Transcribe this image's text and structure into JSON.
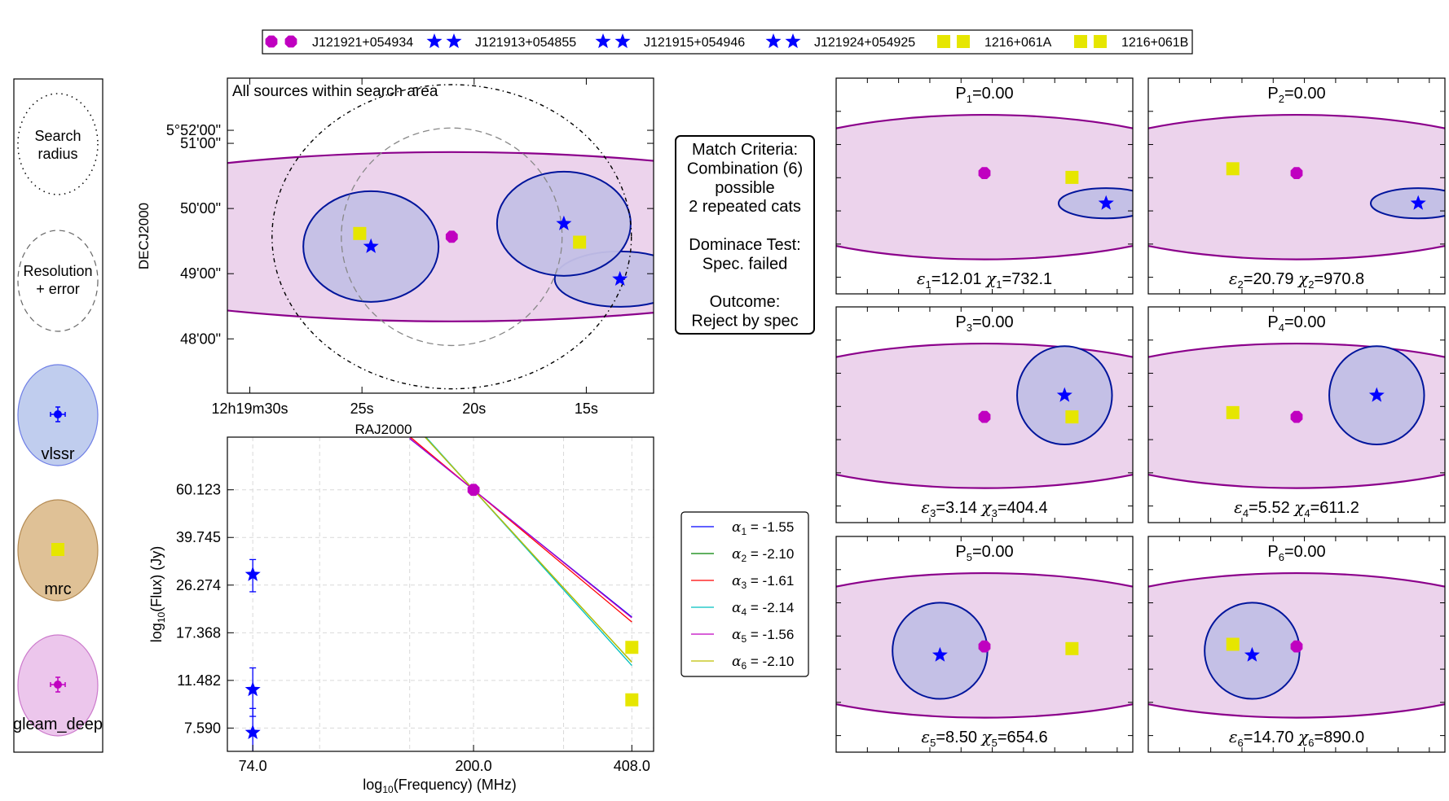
{
  "legend_top": [
    {
      "label": "J121921+054934",
      "marker": "hexagon",
      "color": "#c000c0"
    },
    {
      "label": "J121913+054855",
      "marker": "star",
      "color": "#0000ff"
    },
    {
      "label": "J121915+054946",
      "marker": "star",
      "color": "#0000ff"
    },
    {
      "label": "J121924+054925",
      "marker": "star",
      "color": "#0000ff"
    },
    {
      "label": "1216+061A",
      "marker": "square",
      "color": "#e6e600"
    },
    {
      "label": "1216+061B",
      "marker": "square",
      "color": "#e6e600"
    }
  ],
  "key_panel": {
    "search_radius": "Search\nradius",
    "resolution_error": "Resolution\n+ error",
    "catalogues": [
      {
        "name": "vlssr",
        "fill": "#c0cdee",
        "edge": "#6f7fe6",
        "marker": "cross",
        "marker_color": "#0000ff"
      },
      {
        "name": "mrc",
        "fill": "#dfc196",
        "edge": "#b48a52",
        "marker": "square",
        "marker_color": "#e6e600"
      },
      {
        "name": "gleam_deep",
        "fill": "#ecc6ec",
        "edge": "#cc7acc",
        "marker": "cross",
        "marker_color": "#c000c0"
      }
    ]
  },
  "match_criteria": {
    "lines": [
      "Match Criteria:",
      "Combination (6)",
      "possible",
      "2 repeated cats",
      "",
      "Dominace Test:",
      "Spec. failed",
      "",
      "Outcome:",
      "Reject by spec"
    ]
  },
  "colors": {
    "gleam_fill": "#ecd3ec",
    "gleam_edge": "#8b008b",
    "vlssr_fill": "#c4c0e6",
    "vlssr_edge": "#00159c",
    "blue": "#0000ff",
    "magenta": "#c000c0",
    "yellow": "#e6e600"
  },
  "chart_data": [
    {
      "type": "scatter",
      "title": "All sources within search area",
      "xlabel": "RAJ2000",
      "ylabel": "DECJ2000",
      "x_ticks": [
        "12h19m30s",
        "25s",
        "20s",
        "15s"
      ],
      "x_tick_seconds": [
        30,
        25,
        20,
        15
      ],
      "y_ticks": [
        "5°52'00\"",
        "51'00\"",
        "50'00\"",
        "49'00\"",
        "48'00\""
      ],
      "y_tick_arcsec": [
        72,
        60,
        0,
        -60,
        -120
      ],
      "xlim_ra_seconds": [
        31,
        12
      ],
      "ylim_dec_arcsec_from_5deg50": [
        120,
        -170
      ],
      "center_ra_seconds": 21,
      "center_dec_arcsec_from_5deg50": -26,
      "search_radius_arcsec": 140,
      "resolution_radius_arcsec": 70,
      "points": [
        {
          "name": "J121921+054934",
          "ra_s": 21.0,
          "dec_s": -26,
          "cat": "gleam_deep"
        },
        {
          "name": "J121913+054855",
          "ra_s": 13.5,
          "dec_s": -65,
          "cat": "vlssr"
        },
        {
          "name": "J121915+054946",
          "ra_s": 16.0,
          "dec_s": -14,
          "cat": "vlssr"
        },
        {
          "name": "J121924+054925",
          "ra_s": 24.6,
          "dec_s": -35,
          "cat": "vlssr"
        },
        {
          "name": "1216+061A",
          "ra_s": 25.1,
          "dec_s": -23,
          "cat": "mrc"
        },
        {
          "name": "1216+061B",
          "ra_s": 15.3,
          "dec_s": -31,
          "cat": "mrc"
        }
      ]
    },
    {
      "type": "scatter",
      "title": "",
      "xlabel": "log10(Frequency) (MHz)",
      "ylabel": "log10(Flux) (Jy)",
      "x_ticks": [
        74.0,
        200.0,
        408.0
      ],
      "y_ticks": [
        7.59,
        11.482,
        17.368,
        26.274,
        39.745,
        60.123
      ],
      "y_tick_labels": [
        "7.590",
        "11.482",
        "17.368",
        "26.274",
        "39.745",
        "60.123"
      ],
      "xlim_mhz": [
        66,
        450
      ],
      "ylim_jy": [
        6.2,
        95
      ],
      "grid": true,
      "points": [
        {
          "cat": "vlssr",
          "freq": 74.0,
          "flux": 28.8,
          "err": 4.0,
          "marker": "star"
        },
        {
          "cat": "vlssr",
          "freq": 74.0,
          "flux": 10.6,
          "err": 2.2,
          "marker": "star"
        },
        {
          "cat": "vlssr",
          "freq": 74.0,
          "flux": 7.3,
          "err": 1.7,
          "marker": "star"
        },
        {
          "cat": "gleam_deep",
          "freq": 200.0,
          "flux": 60.1,
          "err": 0,
          "marker": "hexagon"
        },
        {
          "cat": "mrc",
          "freq": 408.0,
          "flux": 15.3,
          "err": 0,
          "marker": "square"
        },
        {
          "cat": "mrc",
          "freq": 408.0,
          "flux": 9.7,
          "err": 0,
          "marker": "square"
        }
      ],
      "fits": [
        {
          "alpha": -1.55,
          "color": "#0000ff",
          "y200": 60.1
        },
        {
          "alpha": -2.1,
          "color": "#008000",
          "y200": 60.1
        },
        {
          "alpha": -1.61,
          "color": "#ff0000",
          "y200": 60.1
        },
        {
          "alpha": -2.14,
          "color": "#00bfbf",
          "y200": 60.1
        },
        {
          "alpha": -1.56,
          "color": "#c000c0",
          "y200": 60.1
        },
        {
          "alpha": -2.1,
          "color": "#bfbf00",
          "y200": 60.1
        }
      ],
      "legend": [
        {
          "sym": "α",
          "sub": "1",
          "value": " = -1.55",
          "color": "#0000ff"
        },
        {
          "sym": "α",
          "sub": "2",
          "value": " = -2.10",
          "color": "#008000"
        },
        {
          "sym": "α",
          "sub": "3",
          "value": " = -1.61",
          "color": "#ff0000"
        },
        {
          "sym": "α",
          "sub": "4",
          "value": " = -2.14",
          "color": "#00bfbf"
        },
        {
          "sym": "α",
          "sub": "5",
          "value": " = -1.56",
          "color": "#c000c0"
        },
        {
          "sym": "α",
          "sub": "6",
          "value": " = -2.10",
          "color": "#bfbf00"
        }
      ]
    }
  ],
  "combinations": [
    {
      "p_label": "P",
      "p_sub": "1",
      "p_value": "=0.00",
      "eps_sub": "1",
      "eps": "=12.01",
      "chi_sub": "1",
      "chi": "=732.1",
      "star": [
        0.91,
        0.58
      ],
      "star_ell": [
        0.91,
        0.58,
        0.16,
        0.14
      ],
      "hex": [
        0.5,
        0.44
      ],
      "sq": [
        0.795,
        0.46
      ]
    },
    {
      "p_label": "P",
      "p_sub": "2",
      "p_value": "=0.00",
      "eps_sub": "2",
      "eps": "=20.79",
      "chi_sub": "2",
      "chi": "=970.8",
      "star": [
        0.91,
        0.58
      ],
      "star_ell": [
        0.91,
        0.58,
        0.16,
        0.14
      ],
      "hex": [
        0.5,
        0.44
      ],
      "sq": [
        0.285,
        0.42
      ]
    },
    {
      "p_label": "P",
      "p_sub": "3",
      "p_value": "=0.00",
      "eps_sub": "3",
      "eps": "=3.14",
      "chi_sub": "3",
      "chi": "=404.4",
      "star": [
        0.77,
        0.41
      ],
      "star_ell": [
        0.77,
        0.41,
        0.16,
        0.32
      ],
      "hex": [
        0.5,
        0.51
      ],
      "sq": [
        0.795,
        0.51
      ]
    },
    {
      "p_label": "P",
      "p_sub": "4",
      "p_value": "=0.00",
      "eps_sub": "4",
      "eps": "=5.52",
      "chi_sub": "4",
      "chi": "=611.2",
      "star": [
        0.77,
        0.41
      ],
      "star_ell": [
        0.77,
        0.41,
        0.16,
        0.32
      ],
      "hex": [
        0.5,
        0.51
      ],
      "sq": [
        0.285,
        0.49
      ]
    },
    {
      "p_label": "P",
      "p_sub": "5",
      "p_value": "=0.00",
      "eps_sub": "5",
      "eps": "=8.50",
      "chi_sub": "5",
      "chi": "=654.6",
      "star": [
        0.35,
        0.55
      ],
      "star_ell": [
        0.35,
        0.53,
        0.16,
        0.31
      ],
      "hex": [
        0.5,
        0.51
      ],
      "sq": [
        0.795,
        0.52
      ]
    },
    {
      "p_label": "P",
      "p_sub": "6",
      "p_value": "=0.00",
      "eps_sub": "6",
      "eps": "=14.70",
      "chi_sub": "6",
      "chi": "=890.0",
      "star": [
        0.35,
        0.55
      ],
      "star_ell": [
        0.35,
        0.53,
        0.16,
        0.31
      ],
      "hex": [
        0.5,
        0.51
      ],
      "sq": [
        0.285,
        0.5
      ]
    }
  ]
}
